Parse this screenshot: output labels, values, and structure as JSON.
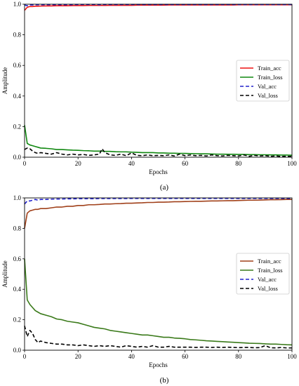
{
  "figure": {
    "panels": [
      {
        "caption": "(a)"
      },
      {
        "caption": "(b)"
      }
    ]
  },
  "chart_data": [
    {
      "type": "line",
      "title": "",
      "xlabel": "Epochs",
      "ylabel": "Amplitude",
      "xlim": [
        0,
        100
      ],
      "ylim": [
        0,
        1.0
      ],
      "xticks": [
        0,
        20,
        40,
        60,
        80,
        100
      ],
      "yticks": [
        0.0,
        0.2,
        0.4,
        0.6,
        0.8,
        1.0
      ],
      "grid": false,
      "legend_position": "center-right",
      "x": [
        0,
        1,
        2,
        3,
        4,
        5,
        6,
        8,
        10,
        12,
        14,
        16,
        18,
        20,
        22,
        24,
        26,
        28,
        29,
        30,
        32,
        34,
        36,
        38,
        40,
        42,
        44,
        46,
        48,
        50,
        52,
        54,
        56,
        58,
        60,
        62,
        64,
        66,
        68,
        70,
        72,
        74,
        76,
        78,
        80,
        82,
        84,
        86,
        88,
        90,
        92,
        94,
        96,
        98,
        100
      ],
      "series": [
        {
          "name": "Train_acc",
          "color": "#ee1111",
          "dash": "solid",
          "values": [
            0.96,
            0.98,
            0.985,
            0.985,
            0.987,
            0.987,
            0.988,
            0.989,
            0.989,
            0.99,
            0.99,
            0.99,
            0.991,
            0.991,
            0.991,
            0.992,
            0.992,
            0.992,
            0.992,
            0.992,
            0.993,
            0.993,
            0.993,
            0.993,
            0.993,
            0.994,
            0.994,
            0.994,
            0.994,
            0.994,
            0.994,
            0.995,
            0.995,
            0.995,
            0.995,
            0.995,
            0.995,
            0.995,
            0.995,
            0.995,
            0.995,
            0.995,
            0.995,
            0.995,
            0.996,
            0.996,
            0.996,
            0.996,
            0.996,
            0.996,
            0.996,
            0.996,
            0.996,
            0.996,
            0.996
          ]
        },
        {
          "name": "Train_loss",
          "color": "#118811",
          "dash": "solid",
          "values": [
            0.21,
            0.09,
            0.08,
            0.075,
            0.07,
            0.065,
            0.06,
            0.058,
            0.055,
            0.05,
            0.05,
            0.048,
            0.046,
            0.045,
            0.043,
            0.042,
            0.04,
            0.04,
            0.04,
            0.038,
            0.038,
            0.036,
            0.035,
            0.035,
            0.033,
            0.032,
            0.03,
            0.03,
            0.03,
            0.028,
            0.028,
            0.026,
            0.026,
            0.025,
            0.025,
            0.024,
            0.023,
            0.022,
            0.022,
            0.021,
            0.02,
            0.02,
            0.019,
            0.019,
            0.018,
            0.018,
            0.017,
            0.017,
            0.016,
            0.016,
            0.015,
            0.015,
            0.014,
            0.014,
            0.013
          ]
        },
        {
          "name": "Val_acc",
          "color": "#2222cc",
          "dash": "dashed",
          "values": [
            0.995,
            0.99,
            0.995,
            0.995,
            0.996,
            0.996,
            0.996,
            0.997,
            0.997,
            0.997,
            0.997,
            0.997,
            0.997,
            0.998,
            0.998,
            0.998,
            0.998,
            0.997,
            0.998,
            0.998,
            0.998,
            0.998,
            0.998,
            0.998,
            0.998,
            0.998,
            0.998,
            0.998,
            0.998,
            0.998,
            0.998,
            0.998,
            0.998,
            0.998,
            0.998,
            0.998,
            0.998,
            0.998,
            0.998,
            0.998,
            0.998,
            0.998,
            0.998,
            0.998,
            0.998,
            0.998,
            0.998,
            0.998,
            0.998,
            0.998,
            0.998,
            0.998,
            0.998,
            0.998,
            0.998
          ]
        },
        {
          "name": "Val_loss",
          "color": "#000000",
          "dash": "dashed",
          "values": [
            0.05,
            0.06,
            0.055,
            0.04,
            0.03,
            0.025,
            0.03,
            0.025,
            0.02,
            0.03,
            0.02,
            0.015,
            0.02,
            0.015,
            0.018,
            0.012,
            0.015,
            0.02,
            0.055,
            0.03,
            0.015,
            0.012,
            0.02,
            0.01,
            0.028,
            0.012,
            0.01,
            0.015,
            0.01,
            0.012,
            0.01,
            0.015,
            0.008,
            0.02,
            0.01,
            0.015,
            0.01,
            0.012,
            0.008,
            0.015,
            0.01,
            0.008,
            0.012,
            0.01,
            0.008,
            0.015,
            0.006,
            0.012,
            0.008,
            0.01,
            0.006,
            0.008,
            0.005,
            0.006,
            0.005
          ]
        }
      ]
    },
    {
      "type": "line",
      "title": "",
      "xlabel": "Epochs",
      "ylabel": "Amplitude",
      "xlim": [
        0,
        100
      ],
      "ylim": [
        0,
        1.0
      ],
      "xticks": [
        0,
        20,
        40,
        60,
        80,
        100
      ],
      "yticks": [
        0.0,
        0.2,
        0.4,
        0.6,
        0.8,
        1.0
      ],
      "grid": false,
      "legend_position": "center-right",
      "x": [
        0,
        1,
        2,
        3,
        4,
        5,
        6,
        8,
        10,
        12,
        14,
        16,
        18,
        20,
        22,
        24,
        26,
        28,
        30,
        32,
        34,
        36,
        38,
        40,
        42,
        44,
        46,
        48,
        50,
        52,
        54,
        56,
        58,
        60,
        62,
        64,
        66,
        68,
        70,
        72,
        74,
        76,
        78,
        80,
        82,
        84,
        86,
        88,
        90,
        92,
        94,
        96,
        98,
        100
      ],
      "series": [
        {
          "name": "Train_acc",
          "color": "#a0401a",
          "dash": "solid",
          "values": [
            0.8,
            0.9,
            0.915,
            0.92,
            0.925,
            0.925,
            0.93,
            0.93,
            0.935,
            0.94,
            0.94,
            0.945,
            0.945,
            0.95,
            0.95,
            0.955,
            0.955,
            0.957,
            0.96,
            0.96,
            0.962,
            0.963,
            0.965,
            0.965,
            0.967,
            0.968,
            0.97,
            0.97,
            0.972,
            0.972,
            0.973,
            0.975,
            0.975,
            0.976,
            0.977,
            0.978,
            0.978,
            0.979,
            0.98,
            0.98,
            0.981,
            0.982,
            0.982,
            0.983,
            0.984,
            0.985,
            0.985,
            0.986,
            0.987,
            0.988,
            0.988,
            0.989,
            0.99,
            0.99
          ]
        },
        {
          "name": "Train_loss",
          "color": "#3a7a1a",
          "dash": "solid",
          "values": [
            0.6,
            0.33,
            0.3,
            0.28,
            0.26,
            0.25,
            0.24,
            0.23,
            0.22,
            0.205,
            0.2,
            0.19,
            0.185,
            0.18,
            0.17,
            0.16,
            0.15,
            0.145,
            0.14,
            0.13,
            0.125,
            0.12,
            0.115,
            0.11,
            0.105,
            0.1,
            0.1,
            0.095,
            0.09,
            0.085,
            0.085,
            0.08,
            0.078,
            0.075,
            0.07,
            0.068,
            0.065,
            0.062,
            0.06,
            0.058,
            0.056,
            0.054,
            0.052,
            0.05,
            0.048,
            0.046,
            0.045,
            0.044,
            0.042,
            0.04,
            0.04,
            0.038,
            0.036,
            0.035
          ]
        },
        {
          "name": "Val_acc",
          "color": "#2222cc",
          "dash": "dashed",
          "values": [
            0.96,
            0.98,
            0.98,
            0.985,
            0.99,
            0.985,
            0.99,
            0.99,
            0.992,
            0.993,
            0.993,
            0.994,
            0.994,
            0.995,
            0.995,
            0.995,
            0.995,
            0.996,
            0.996,
            0.996,
            0.996,
            0.996,
            0.996,
            0.997,
            0.997,
            0.997,
            0.997,
            0.997,
            0.997,
            0.997,
            0.997,
            0.997,
            0.997,
            0.997,
            0.997,
            0.997,
            0.997,
            0.997,
            0.997,
            0.997,
            0.997,
            0.997,
            0.997,
            0.997,
            0.997,
            0.997,
            0.997,
            0.997,
            0.997,
            0.997,
            0.997,
            0.997,
            0.997,
            0.997
          ]
        },
        {
          "name": "Val_loss",
          "color": "#000000",
          "dash": "dashed",
          "values": [
            0.16,
            0.09,
            0.13,
            0.11,
            0.07,
            0.05,
            0.06,
            0.05,
            0.045,
            0.04,
            0.04,
            0.035,
            0.035,
            0.03,
            0.035,
            0.03,
            0.025,
            0.03,
            0.025,
            0.03,
            0.025,
            0.02,
            0.03,
            0.025,
            0.02,
            0.025,
            0.02,
            0.03,
            0.02,
            0.02,
            0.025,
            0.02,
            0.02,
            0.02,
            0.02,
            0.018,
            0.02,
            0.02,
            0.018,
            0.02,
            0.018,
            0.02,
            0.018,
            0.017,
            0.018,
            0.018,
            0.016,
            0.017,
            0.03,
            0.016,
            0.015,
            0.018,
            0.015,
            0.015
          ]
        }
      ]
    }
  ]
}
